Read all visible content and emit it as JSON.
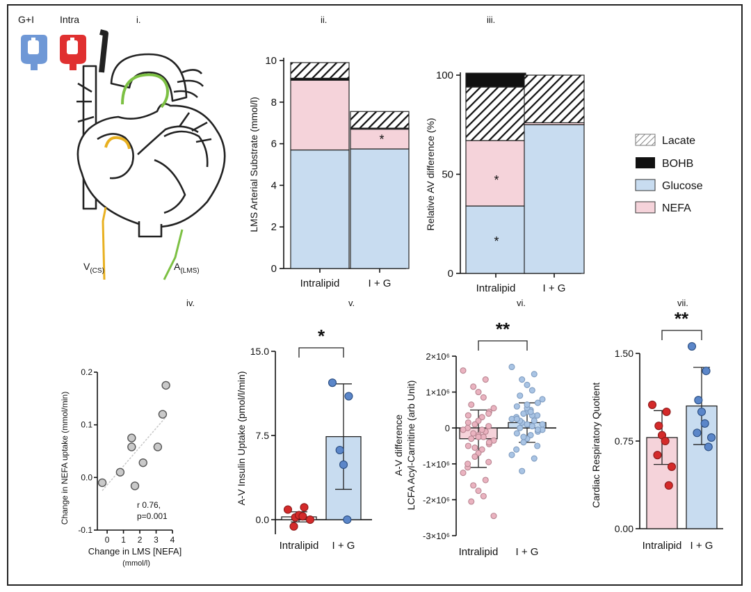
{
  "panel_labels": [
    "i.",
    "ii.",
    "iii.",
    "iv.",
    "v.",
    "vi.",
    "vii."
  ],
  "infusion": {
    "gi_label": "G+I",
    "intra_label": "Intra",
    "gi_color": "#6f98d6",
    "intra_color": "#e03030"
  },
  "heart": {
    "vcs_main": "V",
    "vcs_sub": "(CS)",
    "alms_main": "A",
    "alms_sub": "(LMS)",
    "vessel_cs_color": "#e8b020",
    "vessel_lms_color": "#7cc043"
  },
  "colors": {
    "nefa": "#f5d3da",
    "glucose": "#c8dcf0",
    "bohb": "#111111",
    "red_point": "#d42a2a",
    "blue_point": "#5b86c9",
    "pink_point": "#eab3c0",
    "lightblue_point": "#a9c4e4"
  },
  "legend": {
    "items": [
      "Lacate",
      "BOHB",
      "Glucose",
      "NEFA"
    ]
  },
  "chart_data": [
    {
      "id": "ii",
      "type": "bar",
      "stacked": true,
      "categories": [
        "Intralipid",
        "I + G"
      ],
      "series": [
        {
          "name": "Glucose",
          "values": [
            5.7,
            5.75
          ]
        },
        {
          "name": "NEFA",
          "values": [
            3.35,
            0.95
          ]
        },
        {
          "name": "BOHB",
          "values": [
            0.1,
            0.05
          ]
        },
        {
          "name": "Lacate",
          "values": [
            0.75,
            0.8
          ]
        }
      ],
      "ylabel": "LMS Arterial Substrate (mmol/l)",
      "ylim": [
        0,
        10
      ],
      "yticks": [
        "0",
        "2",
        "4",
        "6",
        "8",
        "10"
      ],
      "annotations": [
        "*"
      ]
    },
    {
      "id": "iii",
      "type": "bar",
      "stacked": true,
      "categories": [
        "Intralipid",
        "I + G"
      ],
      "series": [
        {
          "name": "Glucose",
          "values": [
            34,
            75
          ]
        },
        {
          "name": "NEFA",
          "values": [
            33,
            1
          ]
        },
        {
          "name": "Lacate",
          "values": [
            27,
            24
          ]
        },
        {
          "name": "BOHB",
          "values": [
            7,
            0
          ]
        }
      ],
      "ylabel": "Relative AV difference (%)",
      "ylim": [
        0,
        100
      ],
      "yticks": [
        "0",
        "50",
        "100"
      ],
      "annotations": [
        "*",
        "*"
      ]
    },
    {
      "id": "iv",
      "type": "scatter",
      "points": [
        {
          "x": -0.3,
          "y": -0.01
        },
        {
          "x": 0.8,
          "y": 0.01
        },
        {
          "x": 1.5,
          "y": 0.075
        },
        {
          "x": 1.5,
          "y": 0.058
        },
        {
          "x": 1.7,
          "y": -0.016
        },
        {
          "x": 2.2,
          "y": 0.028
        },
        {
          "x": 3.1,
          "y": 0.058
        },
        {
          "x": 3.4,
          "y": 0.12
        },
        {
          "x": 3.6,
          "y": 0.175
        }
      ],
      "fit": [
        {
          "x": -0.3,
          "y": -0.025
        },
        {
          "x": 3.6,
          "y": 0.115
        }
      ],
      "xlabel": "Change in LMS [NEFA]",
      "xunit": "(mmol/l)",
      "ylabel": "Change in NEFA uptake (mmol/min)",
      "xlim": [
        -0.6,
        4
      ],
      "ylim": [
        -0.1,
        0.2
      ],
      "xticks": [
        "0",
        "1",
        "2",
        "3",
        "4"
      ],
      "yticks": [
        "-0.1",
        "0.0",
        "0.1",
        "0.2"
      ],
      "stat_r": "r 0.76,",
      "stat_p": "p=0.001"
    },
    {
      "id": "v",
      "type": "bar",
      "categories": [
        "Intralipid",
        "I + G"
      ],
      "values": [
        0.25,
        7.4
      ],
      "sd": [
        0.45,
        4.7
      ],
      "points": [
        [
          0.9,
          1.1,
          0.2,
          0.4,
          0.3,
          -0.6,
          0.0
        ],
        [
          12.2,
          11.0,
          6.2,
          4.9,
          0.0
        ]
      ],
      "ylabel": "A-V Insulin Uptake (pmol/l/min)",
      "ylim": [
        -1.3,
        15
      ],
      "yticks": [
        "0.0",
        "7.5",
        "15.0"
      ],
      "significance": "*"
    },
    {
      "id": "vi",
      "type": "bar",
      "categories": [
        "Intralipid",
        "I + G"
      ],
      "values": [
        -0.3,
        0.15
      ],
      "sd": [
        0.8,
        0.55
      ],
      "points": [
        [
          1.6,
          1.35,
          1.15,
          1.0,
          0.85,
          0.65,
          0.55,
          0.45,
          0.35,
          0.3,
          0.2,
          0.1,
          0.05,
          0.0,
          -0.05,
          -0.1,
          -0.15,
          -0.2,
          -0.25,
          -0.3,
          -0.35,
          -0.45,
          -0.5,
          -0.6,
          -0.7,
          -0.8,
          -0.95,
          -1.1,
          -1.25,
          -1.45,
          -1.6,
          -1.75,
          -1.9,
          -2.05,
          -2.45,
          -0.4,
          0.15,
          -0.05,
          -0.25,
          -0.55,
          0.4,
          -1.0
        ],
        [
          1.7,
          1.5,
          1.35,
          1.2,
          1.05,
          0.9,
          0.8,
          0.7,
          0.6,
          0.5,
          0.45,
          0.4,
          0.35,
          0.3,
          0.25,
          0.2,
          0.15,
          0.1,
          0.05,
          0.0,
          -0.05,
          -0.1,
          -0.15,
          -0.2,
          -0.3,
          -0.4,
          -0.5,
          -0.6,
          -0.75,
          -0.85,
          -1.2,
          0.55,
          0.35,
          0.2,
          0.1,
          -0.05,
          0.25,
          0.45,
          0.65,
          -0.25
        ]
      ],
      "ylabel": "A-V difference",
      "ylabel2": "LCFA Acyl-Carnitine (arb Unit)",
      "ylim": [
        -3,
        2
      ],
      "yticks": [
        "2×10⁶",
        "1×10⁶",
        "0",
        "-1×10⁶",
        "-2×10⁶",
        "-3×10⁶"
      ],
      "significance": "**"
    },
    {
      "id": "vii",
      "type": "bar",
      "categories": [
        "Intralipid",
        "I + G"
      ],
      "values": [
        0.78,
        1.05
      ],
      "sd": [
        0.23,
        0.33
      ],
      "points": [
        [
          1.06,
          1.0,
          0.88,
          0.8,
          0.75,
          0.63,
          0.53,
          0.37
        ],
        [
          1.56,
          1.35,
          1.1,
          1.0,
          0.9,
          0.82,
          0.78,
          0.7
        ]
      ],
      "ylabel": "Cardiac Respiratory Quotient",
      "ylim": [
        0,
        1.5
      ],
      "yticks": [
        "0.00",
        "0.75",
        "1.50"
      ],
      "significance": "**"
    }
  ]
}
